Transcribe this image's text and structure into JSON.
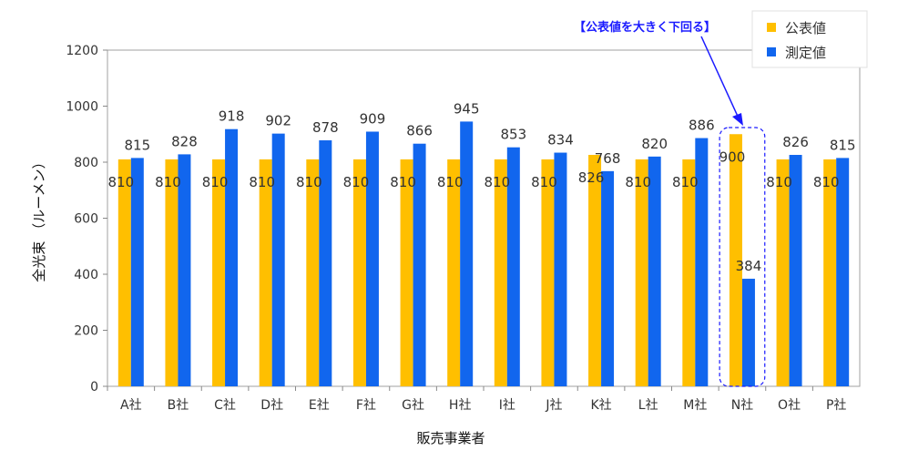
{
  "chart_data": {
    "type": "bar",
    "categories": [
      "A社",
      "B社",
      "C社",
      "D社",
      "E社",
      "F社",
      "G社",
      "H社",
      "I社",
      "J社",
      "K社",
      "L社",
      "M社",
      "N社",
      "O社",
      "P社"
    ],
    "series": [
      {
        "name": "公表値",
        "color": "#ffbf00",
        "values": [
          810,
          810,
          810,
          810,
          810,
          810,
          810,
          810,
          810,
          810,
          826,
          810,
          810,
          900,
          810,
          810
        ]
      },
      {
        "name": "測定値",
        "color": "#1166ee",
        "values": [
          815,
          828,
          918,
          902,
          878,
          909,
          866,
          945,
          853,
          834,
          768,
          820,
          886,
          384,
          826,
          815
        ]
      }
    ],
    "xlabel": "販売事業者",
    "ylabel": "全光束 （ルーメン）",
    "ylim": [
      0,
      1200
    ],
    "yticks": [
      0,
      200,
      400,
      600,
      800,
      1000,
      1200
    ],
    "grid": false,
    "legend_position": "top-right",
    "annotation": {
      "text": "【公表値を大きく下回る】",
      "target_category": "N社",
      "color": "#1a1aff"
    }
  }
}
